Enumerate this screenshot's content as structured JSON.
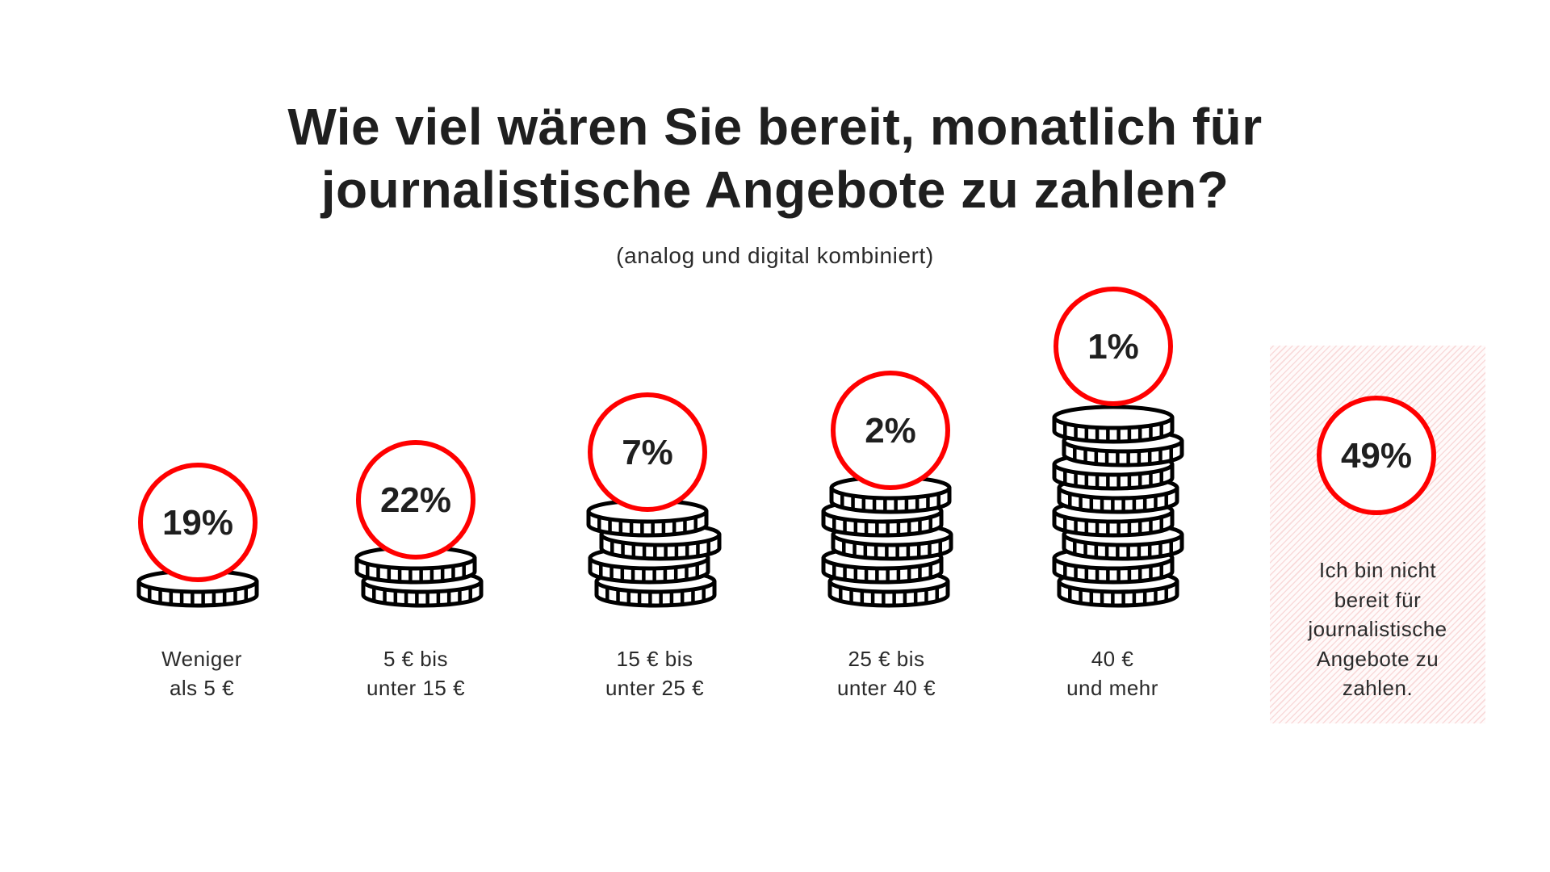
{
  "chart_data": {
    "type": "bar",
    "title": "Wie viel wären Sie bereit, monatlich für journalistische Angebote zu zahlen?",
    "title_lines": [
      "Wie viel wären Sie bereit, monatlich für",
      "journalistische Angebote zu zahlen?"
    ],
    "subtitle": "(analog und digital kombiniert)",
    "unit": "%",
    "categories": [
      {
        "label_lines": [
          "Weniger",
          "als 5 €"
        ],
        "value": 19,
        "display": "19%"
      },
      {
        "label_lines": [
          "5 € bis",
          "unter 15 €"
        ],
        "value": 22,
        "display": "22%"
      },
      {
        "label_lines": [
          "15 € bis",
          "unter 25 €"
        ],
        "value": 7,
        "display": "7%"
      },
      {
        "label_lines": [
          "25 € bis",
          "unter 40 €"
        ],
        "value": 2,
        "display": "2%"
      },
      {
        "label_lines": [
          "40 €",
          "und mehr"
        ],
        "value": 1,
        "display": "1%"
      }
    ],
    "not_willing": {
      "label_lines": [
        "Ich bin nicht",
        "bereit für",
        "journalistische",
        "Angebote zu",
        "zahlen."
      ],
      "value": 49,
      "display": "49%"
    },
    "colors": {
      "circle": "#ff0000",
      "coin_stroke": "#000000",
      "text": "#1f1f1f",
      "panel_hatch": "#f2a8a8"
    }
  }
}
